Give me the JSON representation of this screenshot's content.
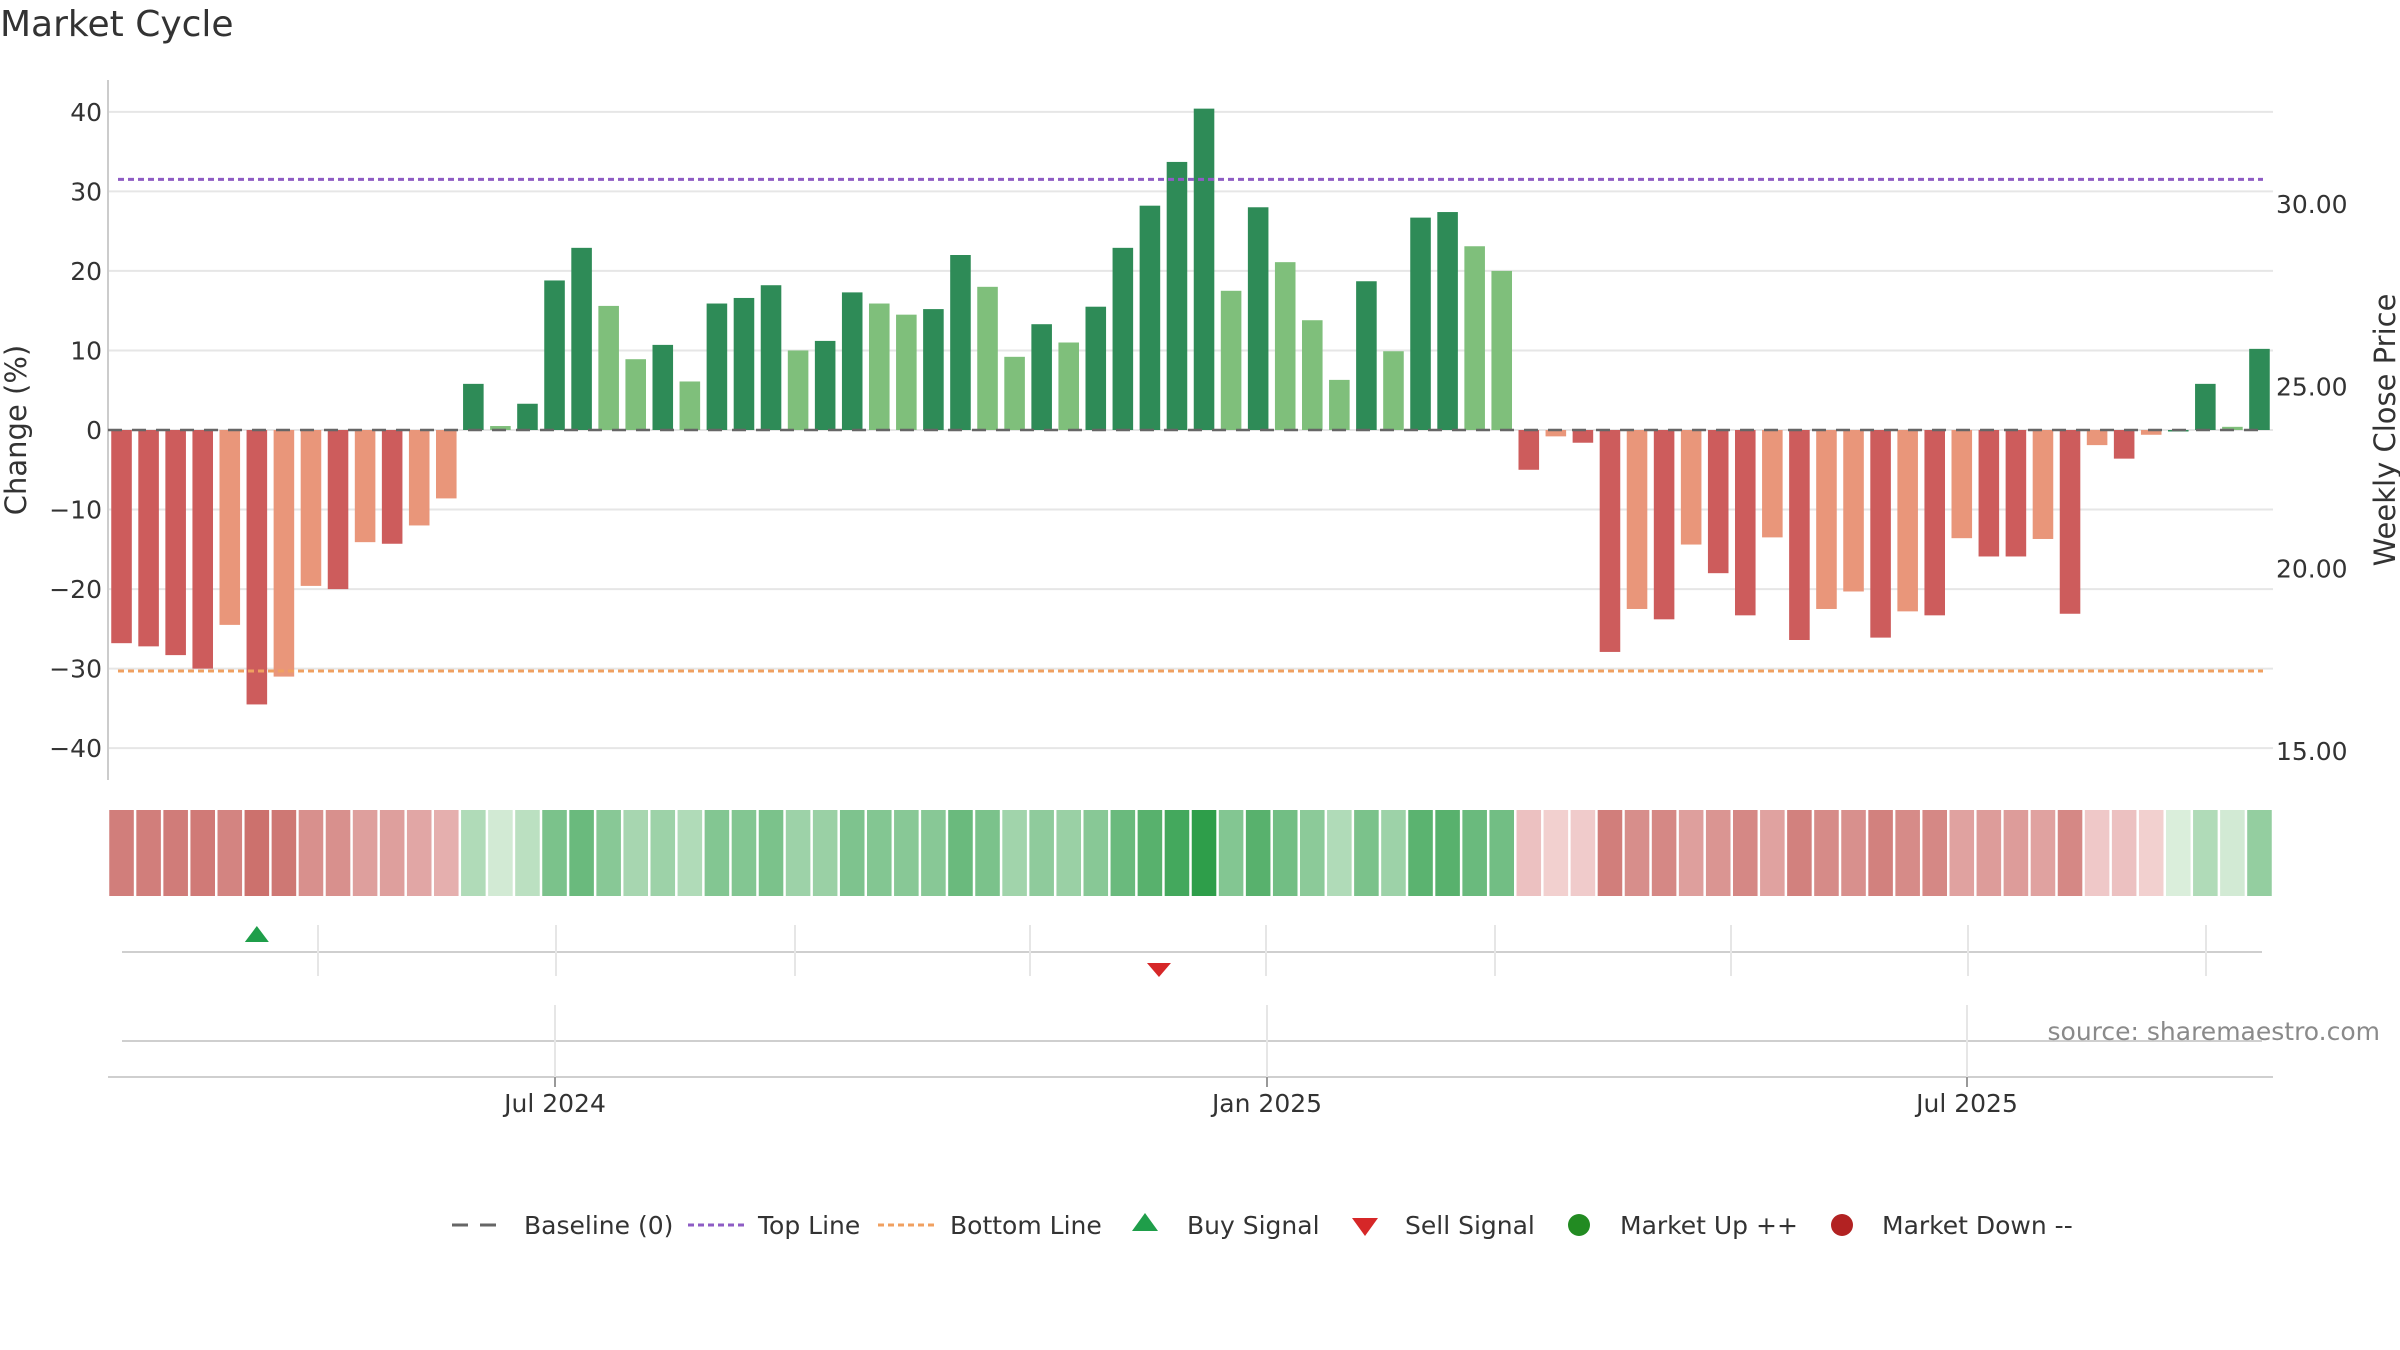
{
  "chart_title": "Market Cycle",
  "source_text": "source: sharemaestro.com",
  "colors": {
    "dark_green": "#2e8b57",
    "light_green": "#7fbf7b",
    "dark_red": "#cd5c5c",
    "light_red": "#e9967a",
    "top_line": "#8e5cc4",
    "bottom_line": "#f0a060",
    "buy": "#1f9e4a",
    "sell": "#d62728",
    "market_up": "#228b22",
    "market_down": "#b22222",
    "baseline": "#666666"
  },
  "chart_data": {
    "type": "bar",
    "title": "Market Cycle",
    "ylabel": "Change (%)",
    "y2label": "Weekly Close Price",
    "ylim": [
      -44,
      44
    ],
    "y2lim": [
      14.2,
      33.4
    ],
    "yticks": [
      -40,
      -30,
      -20,
      -10,
      0,
      10,
      20,
      30,
      40
    ],
    "y2ticks": [
      "15.00",
      "20.00",
      "25.00",
      "30.00"
    ],
    "xticks": [
      "Jul 2024",
      "Jan 2025",
      "Jul 2025"
    ],
    "top_line": 31.5,
    "bottom_line": -30.3,
    "grid": true,
    "legend_position": "bottom-center",
    "series": [
      {
        "values": [
          -26.8,
          -27.2,
          -28.3,
          -30.0,
          -24.5,
          -34.5,
          -31.0,
          -19.6,
          -20.0,
          -14.1,
          -14.3,
          -12.0,
          -8.6,
          5.8,
          0.5,
          3.3,
          18.8,
          22.9,
          15.6,
          8.9,
          10.7,
          6.1,
          15.9,
          16.6,
          18.2,
          10.0,
          11.2,
          17.3,
          15.9,
          14.5,
          15.2,
          22.0,
          18.0,
          9.2,
          13.3,
          11.0,
          15.5,
          22.9,
          28.2,
          33.7,
          40.4,
          17.5,
          28.0,
          21.1,
          13.8,
          6.3,
          18.7,
          9.9,
          26.7,
          27.4,
          23.1,
          20.0,
          -5.0,
          -0.8,
          -1.6,
          -27.9,
          -22.5,
          -23.8,
          -14.4,
          -18.0,
          -23.3,
          -13.5,
          -26.4,
          -22.5,
          -20.3,
          -26.1,
          -22.8,
          -23.3,
          -13.6,
          -15.9,
          -15.9,
          -13.7,
          -23.1,
          -1.9,
          -3.6,
          -0.6,
          0.0,
          5.8,
          0.4,
          10.2
        ],
        "shade": [
          "d",
          "d",
          "d",
          "d",
          "l",
          "d",
          "l",
          "l",
          "d",
          "l",
          "d",
          "l",
          "l",
          "d",
          "l",
          "d",
          "d",
          "d",
          "l",
          "l",
          "d",
          "l",
          "d",
          "d",
          "d",
          "l",
          "d",
          "d",
          "l",
          "l",
          "d",
          "d",
          "l",
          "l",
          "d",
          "l",
          "d",
          "d",
          "d",
          "d",
          "d",
          "l",
          "d",
          "l",
          "l",
          "l",
          "d",
          "l",
          "d",
          "d",
          "l",
          "l",
          "d",
          "l",
          "d",
          "d",
          "l",
          "d",
          "l",
          "d",
          "d",
          "l",
          "d",
          "l",
          "l",
          "d",
          "l",
          "d",
          "l",
          "d",
          "d",
          "l",
          "d",
          "l",
          "d",
          "l",
          "d",
          "d",
          "l",
          "d"
        ]
      }
    ],
    "heatmap_strip": [
      -0.78,
      -0.78,
      -0.8,
      -0.82,
      -0.72,
      -0.92,
      -0.85,
      -0.6,
      -0.6,
      -0.45,
      -0.45,
      -0.38,
      -0.3,
      0.2,
      0.05,
      0.15,
      0.5,
      0.6,
      0.42,
      0.25,
      0.3,
      0.2,
      0.45,
      0.45,
      0.5,
      0.3,
      0.32,
      0.48,
      0.45,
      0.42,
      0.42,
      0.6,
      0.5,
      0.28,
      0.38,
      0.32,
      0.42,
      0.6,
      0.72,
      0.85,
      1.0,
      0.45,
      0.72,
      0.55,
      0.4,
      0.2,
      0.5,
      0.3,
      0.7,
      0.72,
      0.6,
      0.55,
      -0.15,
      -0.05,
      -0.08,
      -0.78,
      -0.62,
      -0.68,
      -0.45,
      -0.55,
      -0.68,
      -0.42,
      -0.75,
      -0.65,
      -0.6,
      -0.75,
      -0.65,
      -0.68,
      -0.42,
      -0.48,
      -0.48,
      -0.42,
      -0.68,
      -0.1,
      -0.15,
      -0.05,
      0.02,
      0.2,
      0.05,
      0.35
    ],
    "buy_signals": [
      5
    ],
    "sell_signals": [
      39
    ]
  },
  "legend": [
    {
      "label": "Baseline (0)",
      "marker": "dashed-line"
    },
    {
      "label": "Top Line",
      "marker": "dotted-line-purple"
    },
    {
      "label": "Bottom Line",
      "marker": "dotted-line-orange"
    },
    {
      "label": "Buy Signal",
      "marker": "triangle-up-icon"
    },
    {
      "label": "Sell Signal",
      "marker": "triangle-down-icon"
    },
    {
      "label": "Market Up ++",
      "marker": "green-circle-icon"
    },
    {
      "label": "Market Down --",
      "marker": "red-circle-icon"
    }
  ]
}
